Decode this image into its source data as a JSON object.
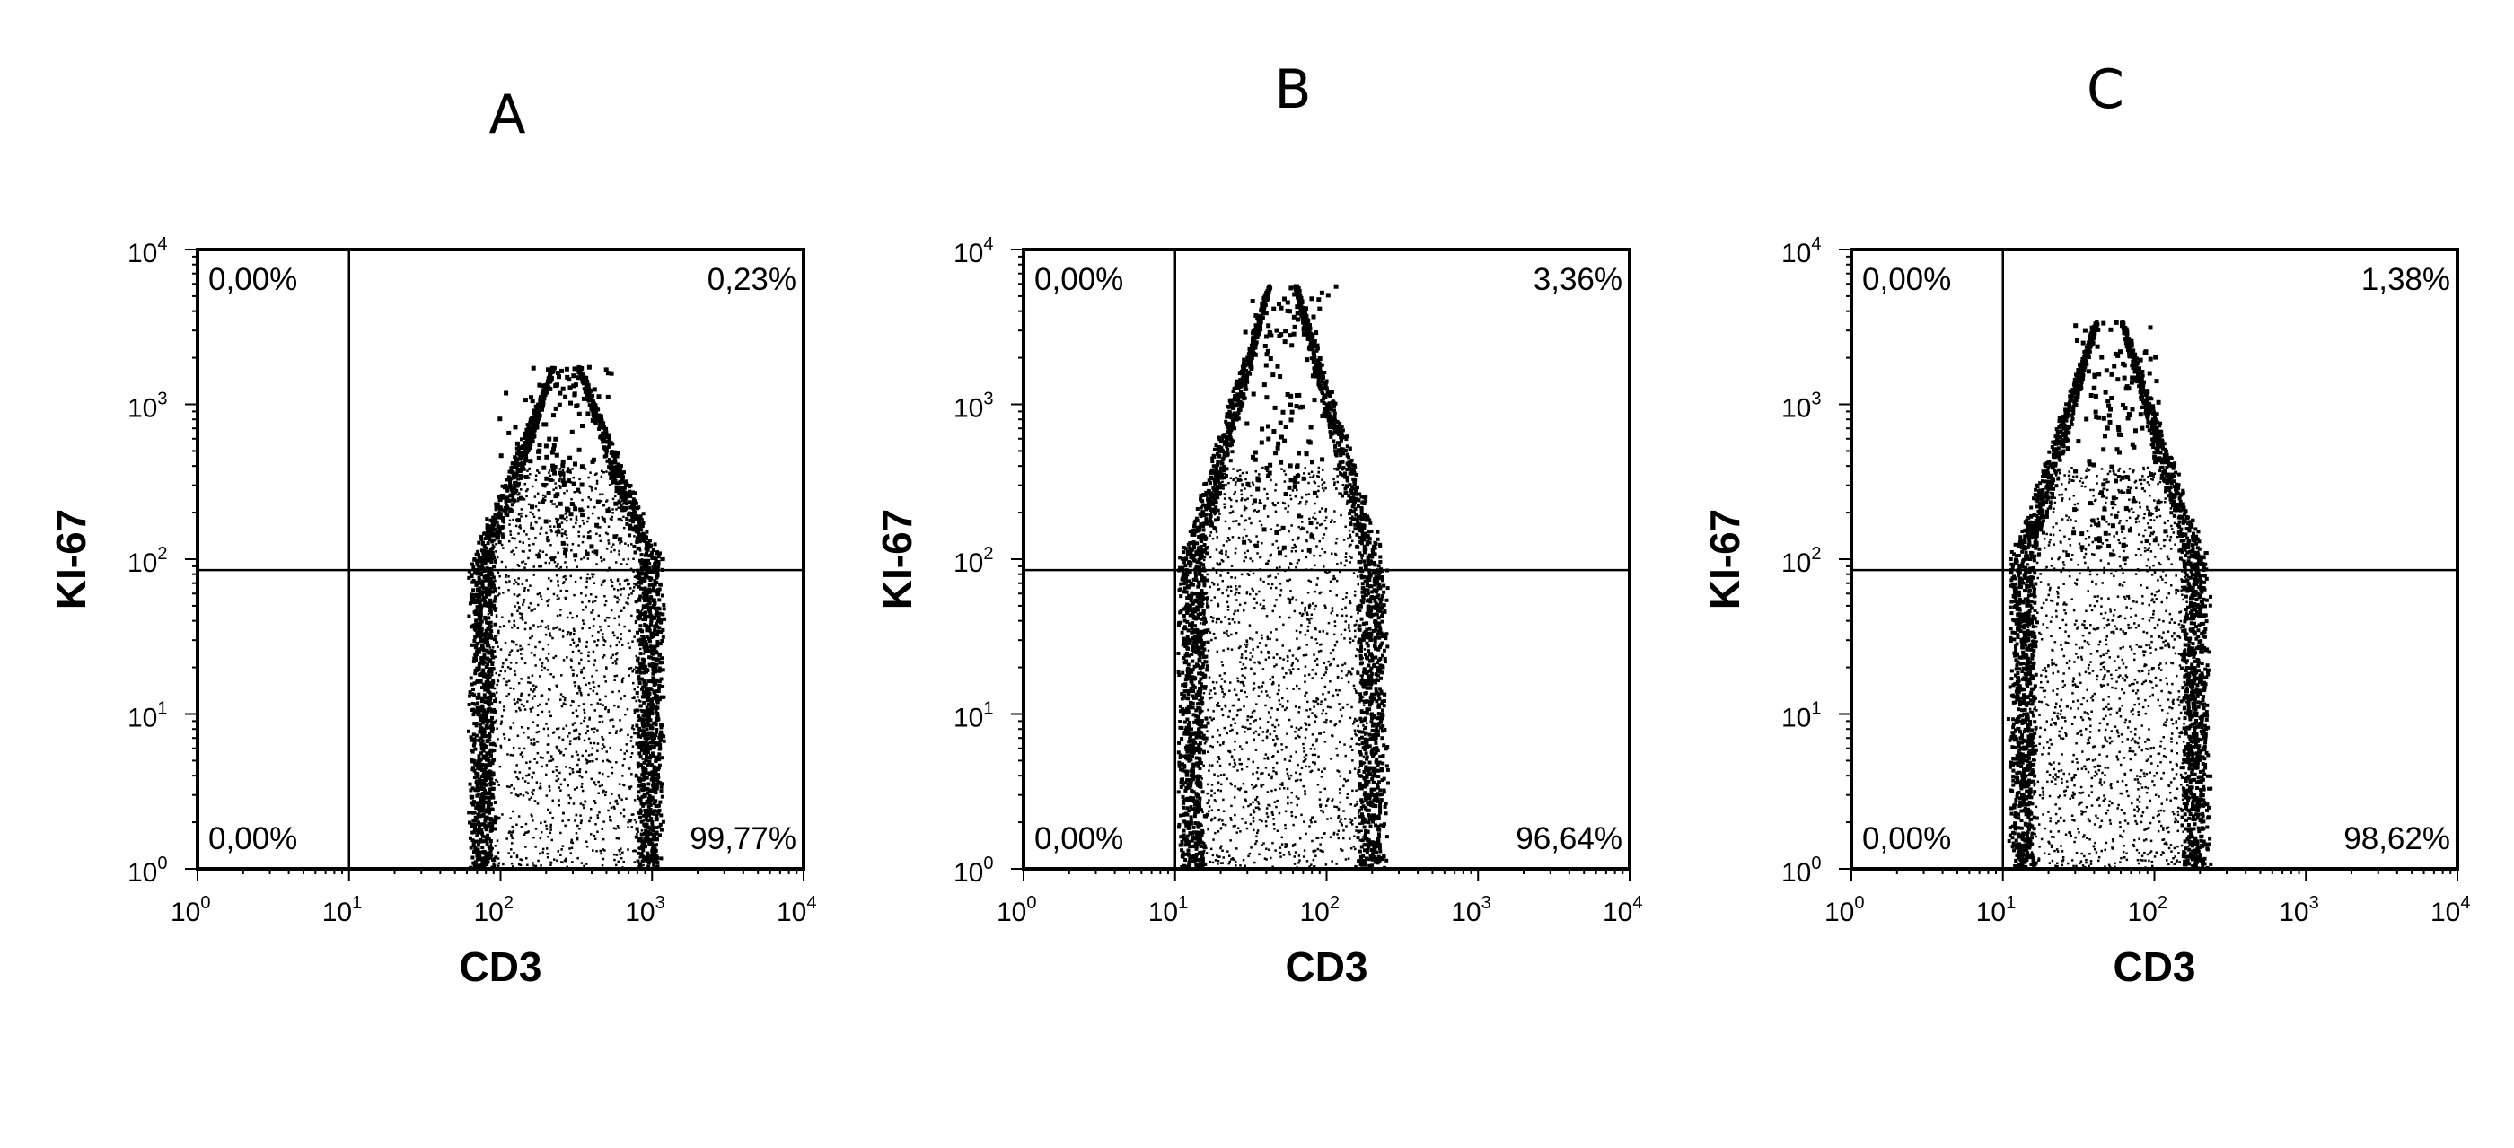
{
  "chart_data": [
    {
      "type": "scatter",
      "panel_label": "A",
      "xlabel": "CD3",
      "ylabel": "KI-67",
      "x_scale": "log",
      "y_scale": "log",
      "xlim": [
        1,
        10000
      ],
      "ylim": [
        1,
        10000
      ],
      "x_ticks": [
        "10^0",
        "10^1",
        "10^2",
        "10^3",
        "10^4"
      ],
      "y_ticks": [
        "10^0",
        "10^1",
        "10^2",
        "10^3",
        "10^4"
      ],
      "quadrant_gate": {
        "x": 10,
        "y": 85
      },
      "quadrants": {
        "upper_left": "0,00%",
        "upper_right": "0,23%",
        "lower_left": "0,00%",
        "lower_right": "99,77%"
      },
      "population": {
        "x_range": [
          60,
          1200
        ],
        "x_center": 260,
        "y_center": 9,
        "y_top": 1800
      }
    },
    {
      "type": "scatter",
      "panel_label": "B",
      "xlabel": "CD3",
      "ylabel": "KI-67",
      "x_scale": "log",
      "y_scale": "log",
      "xlim": [
        1,
        10000
      ],
      "ylim": [
        1,
        10000
      ],
      "x_ticks": [
        "10^0",
        "10^1",
        "10^2",
        "10^3",
        "10^4"
      ],
      "y_ticks": [
        "10^0",
        "10^1",
        "10^2",
        "10^3",
        "10^4"
      ],
      "quadrant_gate": {
        "x": 10,
        "y": 85
      },
      "quadrants": {
        "upper_left": "0,00%",
        "upper_right": "3,36%",
        "lower_left": "0,00%",
        "lower_right": "96,64%"
      },
      "population": {
        "x_range": [
          10,
          250
        ],
        "x_center": 50,
        "y_center": 12,
        "y_top": 6000
      }
    },
    {
      "type": "scatter",
      "panel_label": "C",
      "xlabel": "CD3",
      "ylabel": "KI-67",
      "x_scale": "log",
      "y_scale": "log",
      "xlim": [
        1,
        10000
      ],
      "ylim": [
        1,
        10000
      ],
      "x_ticks": [
        "10^0",
        "10^1",
        "10^2",
        "10^3",
        "10^4"
      ],
      "y_ticks": [
        "10^0",
        "10^1",
        "10^2",
        "10^3",
        "10^4"
      ],
      "quadrant_gate": {
        "x": 10,
        "y": 85
      },
      "quadrants": {
        "upper_left": "0,00%",
        "upper_right": "1,38%",
        "lower_left": "0,00%",
        "lower_right": "98,62%"
      },
      "population": {
        "x_range": [
          10,
          220
        ],
        "x_center": 55,
        "y_center": 10,
        "y_top": 3500
      }
    }
  ],
  "tick_base": "10",
  "tick_exponents": [
    "0",
    "1",
    "2",
    "3",
    "4"
  ],
  "colors": {
    "ink": "#000000",
    "background": "#ffffff"
  }
}
